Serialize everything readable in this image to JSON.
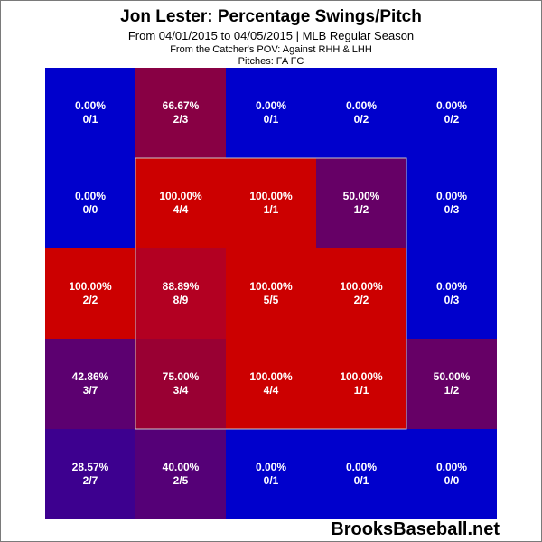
{
  "chart_data": {
    "type": "heatmap",
    "title": "Jon Lester: Percentage Swings/Pitch",
    "subtitle": "From 04/01/2015 to 04/05/2015 | MLB Regular Season",
    "pov": "From the Catcher's POV:  Against RHH & LHH",
    "pitches": "Pitches:  FA  FC",
    "rows": 5,
    "cols": 5,
    "strike_zone": {
      "row_start": 1,
      "row_end": 3,
      "col_start": 1,
      "col_end": 3
    },
    "cells": [
      [
        {
          "pct": "0.00%",
          "frac": "0/1",
          "value": 0.0,
          "color": "#0000cc"
        },
        {
          "pct": "66.67%",
          "frac": "2/3",
          "value": 66.67,
          "color": "#880044"
        },
        {
          "pct": "0.00%",
          "frac": "0/1",
          "value": 0.0,
          "color": "#0000cc"
        },
        {
          "pct": "0.00%",
          "frac": "0/2",
          "value": 0.0,
          "color": "#0000cc"
        },
        {
          "pct": "0.00%",
          "frac": "0/2",
          "value": 0.0,
          "color": "#0000cc"
        }
      ],
      [
        {
          "pct": "0.00%",
          "frac": "0/0",
          "value": 0.0,
          "color": "#0000cc"
        },
        {
          "pct": "100.00%",
          "frac": "4/4",
          "value": 100.0,
          "color": "#cc0000"
        },
        {
          "pct": "100.00%",
          "frac": "1/1",
          "value": 100.0,
          "color": "#cc0000"
        },
        {
          "pct": "50.00%",
          "frac": "1/2",
          "value": 50.0,
          "color": "#660066"
        },
        {
          "pct": "0.00%",
          "frac": "0/3",
          "value": 0.0,
          "color": "#0000cc"
        }
      ],
      [
        {
          "pct": "100.00%",
          "frac": "2/2",
          "value": 100.0,
          "color": "#cc0000"
        },
        {
          "pct": "88.89%",
          "frac": "8/9",
          "value": 88.89,
          "color": "#b30022"
        },
        {
          "pct": "100.00%",
          "frac": "5/5",
          "value": 100.0,
          "color": "#cc0000"
        },
        {
          "pct": "100.00%",
          "frac": "2/2",
          "value": 100.0,
          "color": "#cc0000"
        },
        {
          "pct": "0.00%",
          "frac": "0/3",
          "value": 0.0,
          "color": "#0000cc"
        }
      ],
      [
        {
          "pct": "42.86%",
          "frac": "3/7",
          "value": 42.86,
          "color": "#5c0070"
        },
        {
          "pct": "75.00%",
          "frac": "3/4",
          "value": 75.0,
          "color": "#990033"
        },
        {
          "pct": "100.00%",
          "frac": "4/4",
          "value": 100.0,
          "color": "#cc0000"
        },
        {
          "pct": "100.00%",
          "frac": "1/1",
          "value": 100.0,
          "color": "#cc0000"
        },
        {
          "pct": "50.00%",
          "frac": "1/2",
          "value": 50.0,
          "color": "#660066"
        }
      ],
      [
        {
          "pct": "28.57%",
          "frac": "2/7",
          "value": 28.57,
          "color": "#3d008f"
        },
        {
          "pct": "40.00%",
          "frac": "2/5",
          "value": 40.0,
          "color": "#550077"
        },
        {
          "pct": "0.00%",
          "frac": "0/1",
          "value": 0.0,
          "color": "#0000cc"
        },
        {
          "pct": "0.00%",
          "frac": "0/1",
          "value": 0.0,
          "color": "#0000cc"
        },
        {
          "pct": "0.00%",
          "frac": "0/0",
          "value": 0.0,
          "color": "#0000cc"
        }
      ]
    ]
  },
  "watermark": "BrooksBaseball.net"
}
